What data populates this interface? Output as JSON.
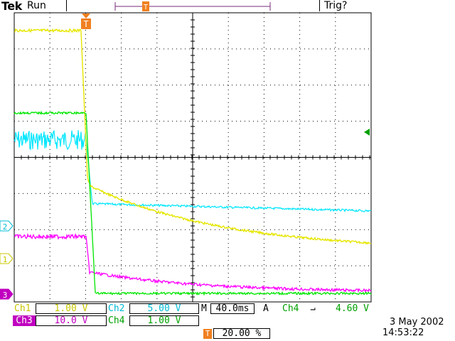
{
  "header": {
    "brand": "Tek",
    "run_state": "Run",
    "trigger_status": "Trig?"
  },
  "colors": {
    "ch1": "#e6e600",
    "ch2": "#00e6ff",
    "ch3": "#ff00ff",
    "ch4": "#00e600",
    "trigger": "#f08020",
    "grid": "#000000",
    "background": "#ffffff"
  },
  "markers": {
    "ch1": "1",
    "ch2": "2",
    "ch3": "3",
    "trigger": "T"
  },
  "readouts": {
    "ch1_label": "Ch1",
    "ch1_scale": "1.00 V",
    "ch2_label": "Ch2",
    "ch2_scale": "5.00 V",
    "ch3_label": "Ch3",
    "ch3_scale": "10.0 V",
    "ch4_label": "Ch4",
    "ch4_scale": "1.00 V",
    "timebase_label": "M",
    "timebase": "40.0ms",
    "trigger_mode": "A",
    "trigger_source": "Ch4",
    "trigger_slope_icon": "falling-edge-icon",
    "trigger_slope": "⌐",
    "trigger_level": "4.60 V",
    "trigger_position": "20.00 %"
  },
  "timestamp": {
    "date": "3 May 2002",
    "time": "14:53:22"
  }
}
